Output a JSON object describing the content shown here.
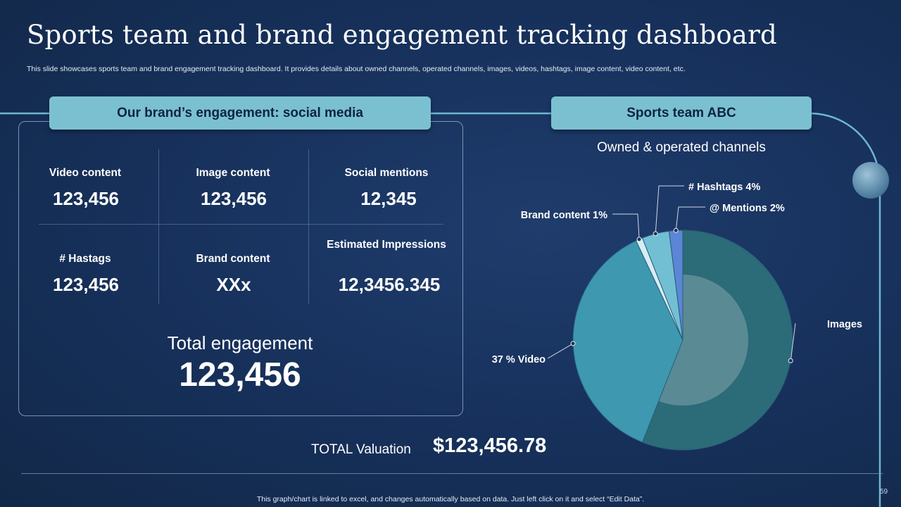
{
  "title": "Sports team and brand engagement tracking dashboard",
  "subtitle": "This slide showcases sports team and brand engagement tracking dashboard. It provides details about owned channels, operated channels, images, videos, hashtags, image content, video content, etc.",
  "left_section": {
    "header": "Our brand’s engagement: social media",
    "metrics": [
      {
        "label": "Video content",
        "value": "123,456"
      },
      {
        "label": "Image content",
        "value": "123,456"
      },
      {
        "label": "Social mentions",
        "value": "12,345"
      },
      {
        "label": "# Hastags",
        "value": "123,456"
      },
      {
        "label": "Brand content",
        "value": "XXx"
      },
      {
        "label": "Estimated Impressions",
        "value": "12,3456.345"
      }
    ],
    "total_label": "Total engagement",
    "total_value": "123,456"
  },
  "right_section": {
    "header": "Sports team ABC"
  },
  "valuation": {
    "label": "TOTAL  Valuation",
    "value": "$123,456.78"
  },
  "footnote": "This graph/chart is linked to excel,  and changes automatically based on data. Just left click on it and select “Edit Data”.",
  "page_number": "59",
  "colors": {
    "background": "#16305a",
    "pill": "#7bc0d1",
    "accent_line": "#6fb7d0",
    "slice_images": "#2c6b78",
    "slice_video": "#3d98b0",
    "slice_brand": "#d6eef3",
    "slice_hashtags": "#72bfd3",
    "slice_mentions": "#5b86d6"
  },
  "chart_data": {
    "type": "pie",
    "title": "Owned & operated channels",
    "slices": [
      {
        "name": "Images",
        "value": 56,
        "label": "Images"
      },
      {
        "name": "Video",
        "value": 37,
        "label": "37 % Video"
      },
      {
        "name": "Brand content",
        "value": 1,
        "label": "Brand content  1%"
      },
      {
        "name": "Hashtags",
        "value": 4,
        "label": "# Hashtags 4%"
      },
      {
        "name": "Mentions",
        "value": 2,
        "label": "@ Mentions 2%"
      }
    ]
  }
}
